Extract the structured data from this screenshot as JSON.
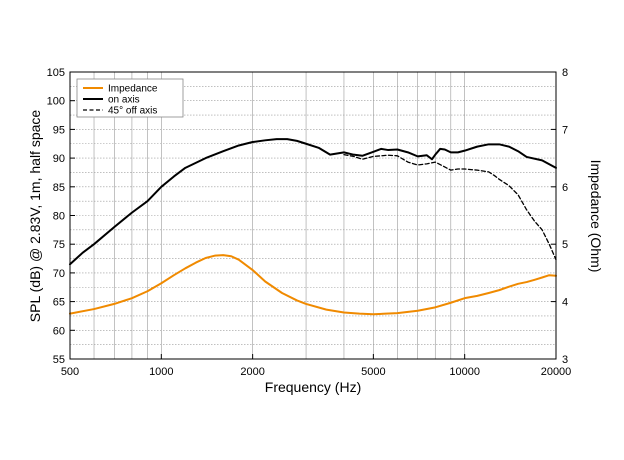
{
  "chart_data": {
    "type": "line",
    "xlabel": "Frequency (Hz)",
    "ylabel": "SPL (dB) @ 2.83V, 1m, half space",
    "y2label": "Impedance (Ohm)",
    "xscale": "log",
    "xlim": [
      500,
      20000
    ],
    "ylim": [
      55,
      105
    ],
    "y2lim": [
      3,
      8
    ],
    "xticks": [
      500,
      1000,
      2000,
      5000,
      10000,
      20000
    ],
    "xtick_labels": [
      "500",
      "1000",
      "2000",
      "5000",
      "10000",
      "20000"
    ],
    "yticks": [
      55,
      60,
      65,
      70,
      75,
      80,
      85,
      90,
      95,
      100,
      105
    ],
    "y2ticks": [
      3,
      4,
      5,
      6,
      7,
      8
    ],
    "grid": true,
    "legend_position": "top-left",
    "series": [
      {
        "name": "Impedance",
        "axis": "right",
        "color": "#f08a00",
        "dash": "solid",
        "x": [
          500,
          600,
          700,
          800,
          900,
          1000,
          1100,
          1200,
          1300,
          1400,
          1500,
          1600,
          1700,
          1800,
          2000,
          2200,
          2500,
          2800,
          3000,
          3500,
          4000,
          4500,
          5000,
          5500,
          6000,
          7000,
          8000,
          9000,
          10000,
          11000,
          12000,
          13000,
          14000,
          15000,
          16000,
          17000,
          18000,
          19000,
          20000
        ],
        "values": [
          3.79,
          3.87,
          3.96,
          4.06,
          4.18,
          4.32,
          4.46,
          4.58,
          4.68,
          4.76,
          4.8,
          4.81,
          4.79,
          4.73,
          4.55,
          4.35,
          4.15,
          4.02,
          3.96,
          3.86,
          3.81,
          3.79,
          3.78,
          3.79,
          3.8,
          3.84,
          3.9,
          3.98,
          4.06,
          4.1,
          4.15,
          4.2,
          4.26,
          4.31,
          4.34,
          4.38,
          4.42,
          4.46,
          4.45
        ]
      },
      {
        "name": "on axis",
        "axis": "left",
        "color": "#000000",
        "dash": "solid",
        "x": [
          500,
          550,
          600,
          700,
          800,
          900,
          1000,
          1100,
          1200,
          1400,
          1600,
          1800,
          2000,
          2200,
          2400,
          2600,
          2800,
          3000,
          3300,
          3600,
          4000,
          4300,
          4600,
          5000,
          5300,
          5600,
          6000,
          6500,
          7000,
          7500,
          7800,
          8000,
          8300,
          8600,
          9000,
          9500,
          10000,
          11000,
          12000,
          13000,
          14000,
          15000,
          16000,
          18000,
          20000
        ],
        "values": [
          71.5,
          73.5,
          75.0,
          78.0,
          80.5,
          82.5,
          85.0,
          86.8,
          88.3,
          90.0,
          91.2,
          92.2,
          92.8,
          93.1,
          93.3,
          93.3,
          93.0,
          92.5,
          91.8,
          90.6,
          91.0,
          90.6,
          90.4,
          91.1,
          91.6,
          91.4,
          91.5,
          91.0,
          90.3,
          90.5,
          89.8,
          90.6,
          91.6,
          91.5,
          91.0,
          91.0,
          91.3,
          92.0,
          92.4,
          92.4,
          92.0,
          91.2,
          90.2,
          89.6,
          88.3
        ]
      },
      {
        "name": "45° off axis",
        "axis": "left",
        "color": "#000000",
        "dash": "dashed",
        "x": [
          4000,
          4300,
          4600,
          5000,
          5300,
          5600,
          6000,
          6500,
          7000,
          7500,
          8000,
          8500,
          9000,
          9500,
          10000,
          11000,
          12000,
          12500,
          13000,
          14000,
          15000,
          16000,
          17000,
          18000,
          19000,
          20000
        ],
        "values": [
          90.6,
          90.3,
          89.8,
          90.3,
          90.4,
          90.5,
          90.4,
          89.3,
          88.8,
          89.0,
          89.3,
          88.6,
          87.9,
          88.1,
          88.1,
          87.9,
          87.6,
          87.0,
          86.3,
          85.2,
          83.6,
          81.0,
          79.0,
          77.5,
          75.0,
          72.3
        ]
      }
    ]
  }
}
